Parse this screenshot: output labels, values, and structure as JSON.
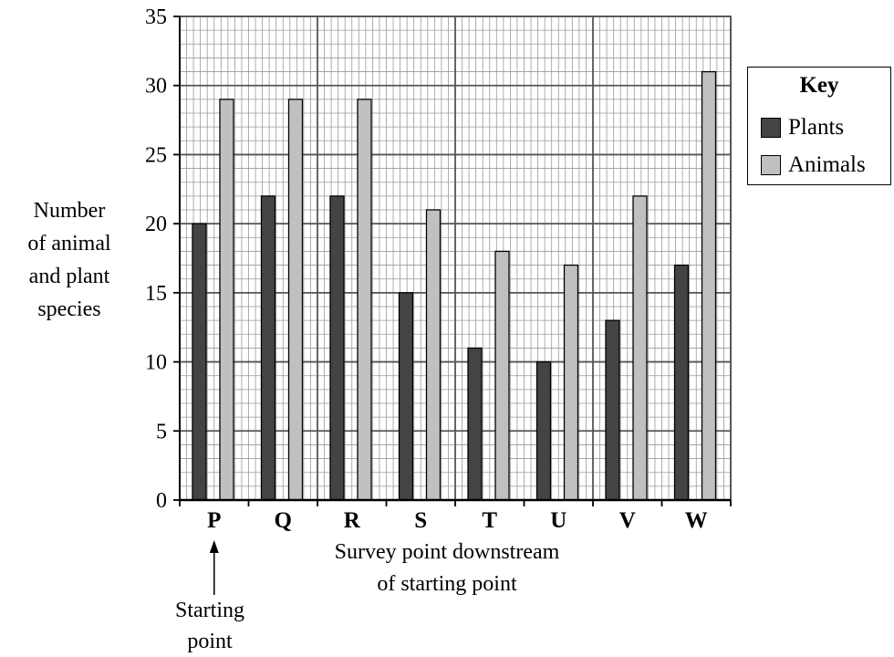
{
  "chart_data": {
    "type": "bar",
    "categories": [
      "P",
      "Q",
      "R",
      "S",
      "T",
      "U",
      "V",
      "W"
    ],
    "series": [
      {
        "name": "Plants",
        "values": [
          20,
          22,
          22,
          15,
          11,
          10,
          13,
          17
        ],
        "color": "#444444"
      },
      {
        "name": "Animals",
        "values": [
          29,
          29,
          29,
          21,
          18,
          17,
          22,
          31
        ],
        "color": "#c0c0c0"
      }
    ],
    "ylabel_lines": [
      "Number",
      "of animal",
      "and plant",
      "species"
    ],
    "xlabel_lines": [
      "Survey point downstream",
      "of starting point"
    ],
    "ylim": [
      0,
      35
    ],
    "yticks": [
      0,
      5,
      10,
      15,
      20,
      25,
      30,
      35
    ],
    "grid": true,
    "minor_grid_step": 1,
    "legend": {
      "title": "Key",
      "placement": "right"
    },
    "annotation": {
      "lines": [
        "Starting",
        "point"
      ],
      "target": "P"
    }
  }
}
